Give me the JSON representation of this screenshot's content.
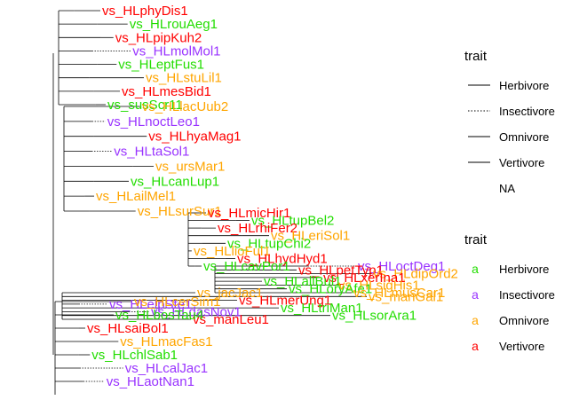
{
  "colors": {
    "Herbivore": "#22dd00",
    "Insectivore": "#9933ff",
    "Omnivore": "#ffa500",
    "Vertivore": "#ff0000"
  },
  "line_legend": {
    "title": "trait",
    "items": [
      {
        "label": "Herbivore",
        "dash": "solid"
      },
      {
        "label": "Insectivore",
        "dash": "dotted"
      },
      {
        "label": "Omnivore",
        "dash": "solid"
      },
      {
        "label": "Vertivore",
        "dash": "solid"
      },
      {
        "label": "NA",
        "dash": "none"
      }
    ]
  },
  "text_legend": {
    "title": "trait",
    "key_glyph": "a",
    "items": [
      {
        "label": "Herbivore",
        "trait": "Herbivore"
      },
      {
        "label": "Insectivore",
        "trait": "Insectivore"
      },
      {
        "label": "Omnivore",
        "trait": "Omnivore"
      },
      {
        "label": "Vertivore",
        "trait": "Vertivore"
      }
    ]
  },
  "tips": [
    {
      "label": "vs_HLphyDis1",
      "trait": "Vertivore"
    },
    {
      "label": "vs_HLrouAeg1",
      "trait": "Herbivore"
    },
    {
      "label": "vs_HLpipKuh2",
      "trait": "Vertivore"
    },
    {
      "label": "vs_HLmolMol1",
      "trait": "Insectivore"
    },
    {
      "label": "vs_HLeptFus1",
      "trait": "Herbivore"
    },
    {
      "label": "vs_HLstuLil1",
      "trait": "Omnivore"
    },
    {
      "label": "vs_HLmesBid1",
      "trait": "Vertivore"
    },
    {
      "label": "vs_susScr11",
      "trait": "Herbivore"
    },
    {
      "label": "vs_HLlacUub2",
      "trait": "Omnivore"
    },
    {
      "label": "vs_HLnoctLeo1",
      "trait": "Insectivore"
    },
    {
      "label": "vs_HLhyaMag1",
      "trait": "Vertivore"
    },
    {
      "label": "vs_HLtaSol1",
      "trait": "Insectivore"
    },
    {
      "label": "vs_ursMar1",
      "trait": "Omnivore"
    },
    {
      "label": "vs_HLcanLup1",
      "trait": "Herbivore"
    },
    {
      "label": "vs_HLailMel1",
      "trait": "Omnivore"
    },
    {
      "label": "vs_HLsurSur1",
      "trait": "Omnivore"
    },
    {
      "label": "vs_HLmicHir1",
      "trait": "Vertivore"
    },
    {
      "label": "vs_HLtupBel2",
      "trait": "Herbivore"
    },
    {
      "label": "vs_HLrhiFer2",
      "trait": "Vertivore"
    },
    {
      "label": "vs_HLeriSol1",
      "trait": "Omnivore"
    },
    {
      "label": "vs_HLtupChi2",
      "trait": "Herbivore"
    },
    {
      "label": "vs_HLlioFul1",
      "trait": "Omnivore"
    },
    {
      "label": "vs_HLhydHyd1",
      "trait": "Vertivore"
    },
    {
      "label": "vs_HLcavPor1",
      "trait": "Herbivore"
    },
    {
      "label": "vs_HLoctDeg1",
      "trait": "Insectivore"
    },
    {
      "label": "vs_HLpetTyp1",
      "trait": "Vertivore"
    },
    {
      "label": "vs_HLdipOrd2",
      "trait": "Omnivore"
    },
    {
      "label": "vs_HLxerIna1",
      "trait": "Vertivore"
    },
    {
      "label": "vs_HLallBul1",
      "trait": "Herbivore"
    },
    {
      "label": "vs_HLsigHis1",
      "trait": "Omnivore"
    },
    {
      "label": "vs_HLoryAfe1",
      "trait": "Herbivore"
    },
    {
      "label": "vs_HLmusCar1",
      "trait": "Omnivore"
    },
    {
      "label": "vs_jacJac1",
      "trait": "Omnivore"
    },
    {
      "label": "vs_manGal1",
      "trait": "Omnivore"
    },
    {
      "label": "vs_HLmerUng1",
      "trait": "Vertivore"
    },
    {
      "label": "vs_HLelpSte1",
      "trait": "Insectivore"
    },
    {
      "label": "vs_HLtriMan1",
      "trait": "Herbivore"
    },
    {
      "label": "vs_HLdasNov1",
      "trait": "Insectivore"
    },
    {
      "label": "vs_HLsorAra1",
      "trait": "Herbivore"
    },
    {
      "label": "vs_manLeu1",
      "trait": "Vertivore"
    },
    {
      "label": "vs_HLcerSim1",
      "trait": "Omnivore"
    },
    {
      "label": "vs_HLbosTau4",
      "trait": "Herbivore"
    },
    {
      "label": "vs_HLsaiBol1",
      "trait": "Vertivore"
    },
    {
      "label": "vs_HLmacFas1",
      "trait": "Omnivore"
    },
    {
      "label": "vs_HLchlSab1",
      "trait": "Herbivore"
    },
    {
      "label": "vs_HLcalJac1",
      "trait": "Insectivore"
    },
    {
      "label": "vs_HLaotNan1",
      "trait": "Insectivore"
    }
  ]
}
